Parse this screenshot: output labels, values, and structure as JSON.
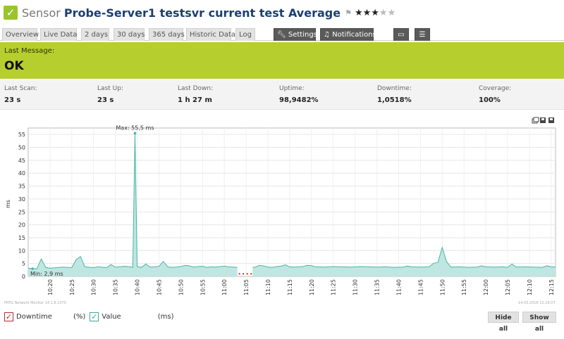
{
  "header": {
    "prefix": "Sensor",
    "name": "Probe-Server1 testsvr current test Average",
    "rating": 3,
    "rating_max": 5
  },
  "tabs": [
    {
      "label": "Overview",
      "active": false
    },
    {
      "label": "Live Data",
      "active": true
    },
    {
      "label": "2 days",
      "active": false
    },
    {
      "label": "30 days",
      "active": false
    },
    {
      "label": "365 days",
      "active": false
    },
    {
      "label": "Historic Data",
      "active": false
    },
    {
      "label": "Log",
      "active": false
    }
  ],
  "toolbar": {
    "settings_label": "Settings",
    "notifications_label": "Notifications"
  },
  "message": {
    "label": "Last Message:",
    "value": "OK"
  },
  "stats": [
    {
      "label": "Last Scan:",
      "value": "23 s"
    },
    {
      "label": "Last Up:",
      "value": "23 s"
    },
    {
      "label": "Last Down:",
      "value": "1 h 27 m"
    },
    {
      "label": "Uptime:",
      "value": "98,9482%"
    },
    {
      "label": "Downtime:",
      "value": "1,0518%"
    },
    {
      "label": "Coverage:",
      "value": "100%"
    }
  ],
  "chart_data": {
    "type": "area",
    "ylabel": "ms",
    "ylim": [
      0,
      57.5
    ],
    "yticks": [
      0,
      5,
      10,
      15,
      20,
      25,
      30,
      35,
      40,
      45,
      50,
      55
    ],
    "xlim_min": [
      15,
      136
    ],
    "xticks": [
      "10:20",
      "10:25",
      "10:30",
      "10:35",
      "10:40",
      "10:45",
      "10:50",
      "10:55",
      "11:00",
      "11:05",
      "11:10",
      "11:15",
      "11:20",
      "11:25",
      "11:30",
      "11:35",
      "11:40",
      "11:45",
      "11:50",
      "11:55",
      "12:00",
      "12:05",
      "12:10",
      "12:15"
    ],
    "annotations": {
      "max": "Max: 55,5 ms",
      "min": "Min: 2,9 ms"
    },
    "downtime_gap": [
      63,
      66.5
    ],
    "series": [
      {
        "name": "Value",
        "points": [
          [
            15,
            3.2
          ],
          [
            16,
            3.0
          ],
          [
            17,
            3.0
          ],
          [
            18,
            6.8
          ],
          [
            19,
            3.5
          ],
          [
            20,
            3.2
          ],
          [
            23,
            3.6
          ],
          [
            25,
            3.4
          ],
          [
            26,
            6.5
          ],
          [
            27,
            7.7
          ],
          [
            28,
            3.7
          ],
          [
            30,
            3.4
          ],
          [
            31,
            3.7
          ],
          [
            33,
            3.4
          ],
          [
            34,
            4.6
          ],
          [
            35,
            3.6
          ],
          [
            36,
            3.7
          ],
          [
            37,
            3.9
          ],
          [
            38,
            3.8
          ],
          [
            39,
            3.5
          ],
          [
            39.5,
            55.5
          ],
          [
            40,
            3.8
          ],
          [
            41,
            3.5
          ],
          [
            42,
            4.8
          ],
          [
            43,
            3.6
          ],
          [
            44,
            3.7
          ],
          [
            45,
            3.9
          ],
          [
            46,
            5.8
          ],
          [
            47,
            3.7
          ],
          [
            48,
            3.5
          ],
          [
            49,
            3.6
          ],
          [
            50,
            3.8
          ],
          [
            51,
            4.3
          ],
          [
            52,
            4.1
          ],
          [
            53,
            3.6
          ],
          [
            54,
            3.8
          ],
          [
            55,
            3.9
          ],
          [
            56,
            3.5
          ],
          [
            57,
            3.7
          ],
          [
            58,
            3.6
          ],
          [
            60,
            4.0
          ],
          [
            61,
            3.7
          ],
          [
            62,
            3.6
          ],
          [
            63,
            3.5
          ],
          [
            66.5,
            3.6
          ],
          [
            67,
            3.5
          ],
          [
            68,
            4.3
          ],
          [
            69,
            4.1
          ],
          [
            70,
            3.6
          ],
          [
            71,
            3.5
          ],
          [
            72,
            3.8
          ],
          [
            73,
            4.0
          ],
          [
            74,
            4.5
          ],
          [
            75,
            3.7
          ],
          [
            76,
            3.6
          ],
          [
            78,
            3.8
          ],
          [
            79,
            4.3
          ],
          [
            80,
            4.2
          ],
          [
            81,
            3.7
          ],
          [
            83,
            3.6
          ],
          [
            85,
            3.8
          ],
          [
            87,
            3.7
          ],
          [
            89,
            3.6
          ],
          [
            91,
            3.8
          ],
          [
            93,
            3.7
          ],
          [
            95,
            3.6
          ],
          [
            97,
            3.7
          ],
          [
            99,
            3.5
          ],
          [
            101,
            3.6
          ],
          [
            102,
            4.0
          ],
          [
            103,
            3.7
          ],
          [
            105,
            3.6
          ],
          [
            107,
            3.7
          ],
          [
            108,
            5.1
          ],
          [
            109,
            5.4
          ],
          [
            110,
            11.2
          ],
          [
            111,
            5.7
          ],
          [
            112,
            3.6
          ],
          [
            114,
            3.7
          ],
          [
            116,
            3.5
          ],
          [
            118,
            3.6
          ],
          [
            119,
            4.1
          ],
          [
            120,
            3.7
          ],
          [
            122,
            3.6
          ],
          [
            124,
            3.7
          ],
          [
            125,
            3.5
          ],
          [
            126,
            4.8
          ],
          [
            127,
            3.6
          ],
          [
            129,
            3.7
          ],
          [
            131,
            3.6
          ],
          [
            133,
            3.5
          ],
          [
            134,
            4.1
          ],
          [
            135,
            3.7
          ],
          [
            136,
            3.6
          ]
        ]
      }
    ]
  },
  "footer": {
    "version": "PRTG Network Monitor 14.1.8.1370",
    "timestamp": "14.03.2018 12:16:07"
  },
  "legend": {
    "downtime_label": "Downtime",
    "downtime_unit": "(%)",
    "value_label": "Value",
    "value_unit": "(ms)"
  },
  "buttons": {
    "hide_all": "Hide all",
    "show_all": "Show all"
  },
  "colors": {
    "ok_green": "#b6cf2f",
    "series_line": "#4bb4a8",
    "series_fill": "#bfe6e1",
    "downtime_red": "#c0282e"
  }
}
